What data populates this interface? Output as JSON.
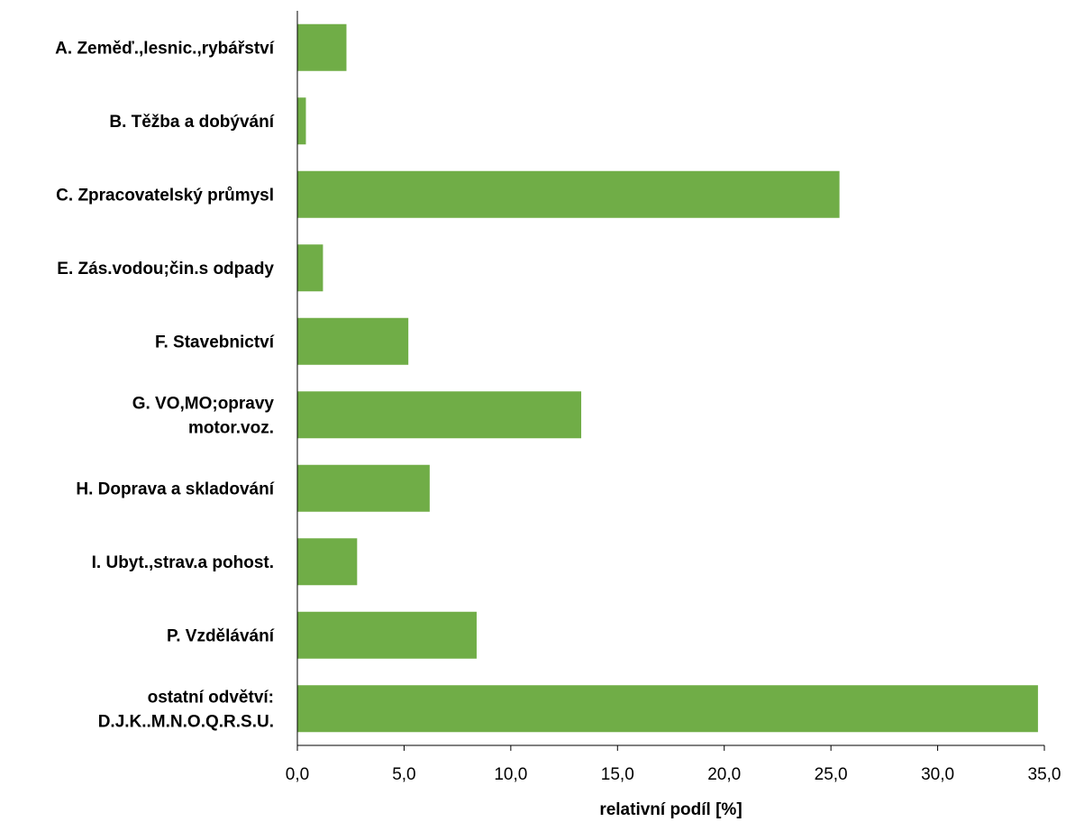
{
  "chart_data": {
    "type": "bar",
    "orientation": "horizontal",
    "categories": [
      [
        "A. Zeměď.,lesnic.,rybářství"
      ],
      [
        "B. Těžba a dobývání"
      ],
      [
        "C. Zpracovatelský průmysl"
      ],
      [
        "E. Zás.vodou;čin.s odpady"
      ],
      [
        "F. Stavebnictví"
      ],
      [
        "G. VO,MO;opravy",
        "motor.voz."
      ],
      [
        "H. Doprava a skladování"
      ],
      [
        "I. Ubyt.,strav.a pohost."
      ],
      [
        "P. Vzdělávání"
      ],
      [
        "ostatní odvětví:",
        "D.J.K..M.N.O.Q.R.S.U."
      ]
    ],
    "values": [
      2.3,
      0.4,
      25.4,
      1.2,
      5.2,
      13.3,
      6.2,
      2.8,
      8.4,
      34.7
    ],
    "xlim": [
      0,
      35
    ],
    "xticks": [
      "0,0",
      "5,0",
      "10,0",
      "15,0",
      "20,0",
      "25,0",
      "30,0",
      "35,0"
    ],
    "xlabel": "relativní podíl [%]",
    "grid": false,
    "legend": "none",
    "bar_color": "#70ad47"
  }
}
